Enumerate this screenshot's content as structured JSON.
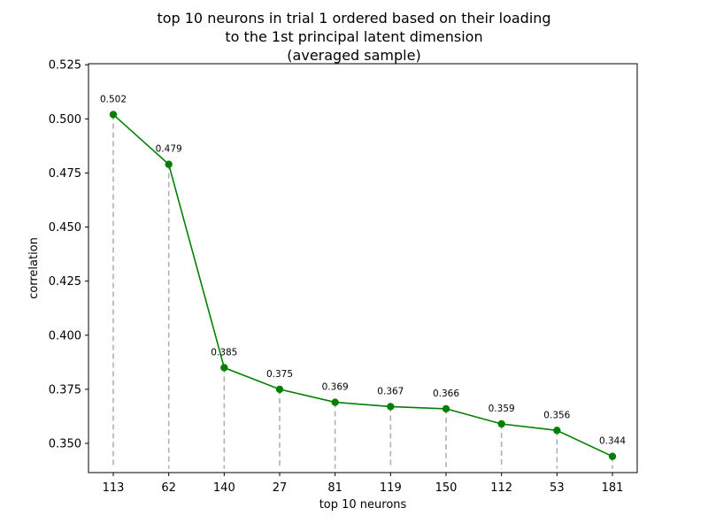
{
  "chart_data": {
    "type": "line",
    "title_lines": [
      "top 10 neurons in trial 1 ordered based on their loading",
      "to the 1st principal latent dimension",
      "(averaged sample)"
    ],
    "xlabel": "top 10 neurons",
    "ylabel": "correlation",
    "categories": [
      "113",
      "62",
      "140",
      "27",
      "81",
      "119",
      "150",
      "112",
      "53",
      "181"
    ],
    "values": [
      0.502,
      0.479,
      0.385,
      0.375,
      0.369,
      0.367,
      0.366,
      0.359,
      0.356,
      0.344
    ],
    "data_labels": [
      "0.502",
      "0.479",
      "0.385",
      "0.375",
      "0.369",
      "0.367",
      "0.366",
      "0.359",
      "0.356",
      "0.344"
    ],
    "ylim": [
      0.3365,
      0.5255
    ],
    "yticks": [
      0.35,
      0.375,
      0.4,
      0.425,
      0.45,
      0.475,
      0.5,
      0.525
    ],
    "ytick_labels": [
      "0.350",
      "0.375",
      "0.400",
      "0.425",
      "0.450",
      "0.475",
      "0.500",
      "0.525"
    ],
    "stem_baseline": 0.344,
    "grid": false,
    "legend": "none",
    "colors": {
      "line": "#008000",
      "marker": "#008000",
      "stem": "#b0b0b0",
      "axis": "#000000"
    }
  }
}
